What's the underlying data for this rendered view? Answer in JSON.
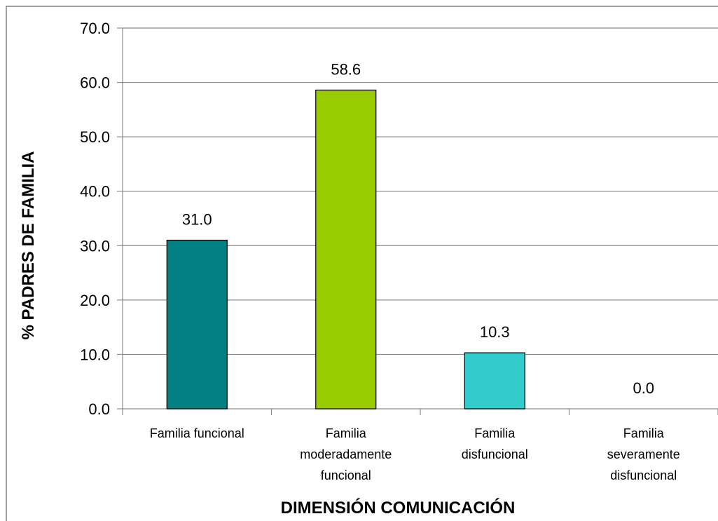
{
  "chart_data": {
    "type": "bar",
    "categories": [
      [
        "Familia funcional"
      ],
      [
        "Familia",
        "moderadamente",
        "funcional"
      ],
      [
        "Familia",
        "disfuncional"
      ],
      [
        "Familia",
        "severamente",
        "disfuncional"
      ]
    ],
    "values": [
      31.0,
      58.6,
      10.3,
      0.0
    ],
    "data_labels": [
      "31.0",
      "58.6",
      "10.3",
      "0.0"
    ],
    "bar_colors": [
      "#008080",
      "#99CC00",
      "#33CCCC",
      "#CC99FF"
    ],
    "xlabel": "DIMENSIÓN COMUNICACIÓN",
    "ylabel": "% PADRES DE FAMILIA",
    "ylim": [
      0,
      70
    ],
    "yticks": [
      "0.0",
      "10.0",
      "20.0",
      "30.0",
      "40.0",
      "50.0",
      "60.0",
      "70.0"
    ],
    "grid": true,
    "legend": "none"
  }
}
